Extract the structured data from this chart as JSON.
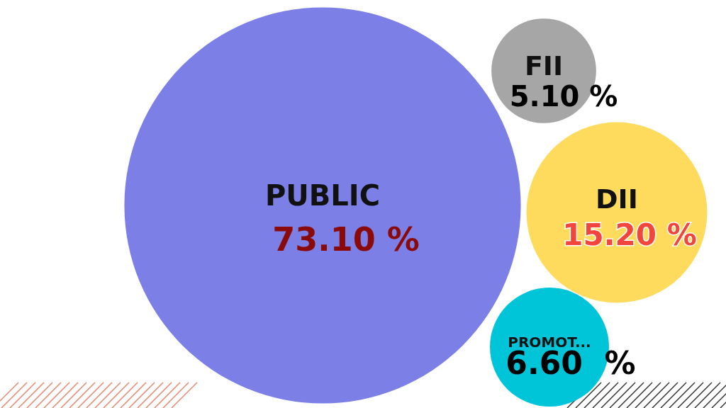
{
  "chart_data": {
    "type": "other",
    "categories": [
      "PUBLIC",
      "FII",
      "DII",
      "PROMOT..."
    ],
    "values": [
      73.1,
      5.1,
      15.2,
      6.6
    ],
    "value_labels": [
      "73.10 %",
      "5.10 %",
      "15.20 %",
      "6.60  %"
    ],
    "colors": [
      "#7b7fe6",
      "#a6a6a6",
      "#fedb5c",
      "#00c5d8"
    ]
  }
}
